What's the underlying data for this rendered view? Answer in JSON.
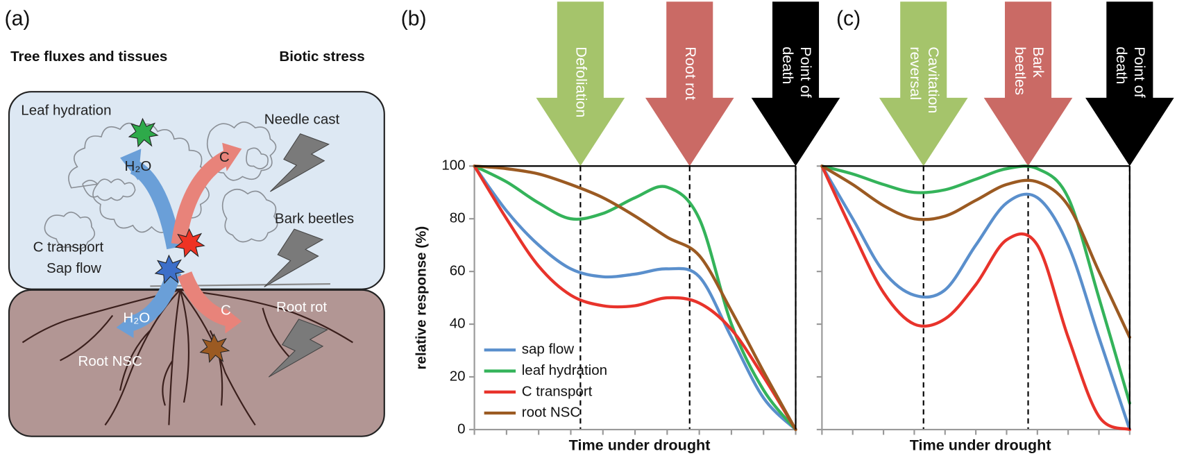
{
  "diagram": {
    "panel_label": "(a)",
    "heading_left": "Tree fluxes and tissues",
    "heading_right": "Biotic stress",
    "labels": [
      "Leaf hydration",
      "H₂O",
      "C",
      "Needle cast",
      "Bark beetles",
      "C transport",
      "Sap flow",
      "H₂O",
      "C",
      "Root rot",
      "Root NSC"
    ]
  },
  "chart_data": [
    {
      "type": "line",
      "panel_label": "(b)",
      "x_label": "Time under drought",
      "y_label": "relative response (%)",
      "x": [
        0,
        10,
        20,
        30,
        40,
        50,
        60,
        70,
        80,
        90,
        100
      ],
      "xlim": [
        0,
        100
      ],
      "xticks": [
        0,
        10,
        20,
        30,
        40,
        50,
        60,
        70,
        80,
        90,
        100
      ],
      "xtick_labels": false,
      "ylim": [
        0,
        100
      ],
      "yticks": [
        0,
        20,
        40,
        60,
        80,
        100
      ],
      "ytick_labels": true,
      "legend": "lower left",
      "series": [
        {
          "name": "sap flow",
          "color": "#5a8fcc",
          "values": [
            100,
            83,
            70,
            61,
            58,
            59,
            61,
            58,
            35,
            12,
            0
          ]
        },
        {
          "name": "leaf hydration",
          "color": "#34b35a",
          "values": [
            100,
            94,
            86,
            80,
            82,
            88,
            92,
            80,
            40,
            15,
            0
          ]
        },
        {
          "name": "C transport",
          "color": "#e8332b",
          "values": [
            100,
            80,
            62,
            51,
            47,
            47,
            50,
            48,
            38,
            20,
            0
          ]
        },
        {
          "name": "root NSC",
          "color": "#9b5a22",
          "values": [
            100,
            99,
            97,
            93,
            88,
            81,
            73,
            66,
            45,
            22,
            0
          ]
        }
      ],
      "events": [
        {
          "label": [
            "Defoliation"
          ],
          "x": 33,
          "color": "#9dbf5e"
        },
        {
          "label": [
            "Root rot"
          ],
          "x": 67,
          "color": "#c65d58"
        },
        {
          "label": [
            "Point of",
            "death"
          ],
          "x": 100,
          "color": "#000000"
        }
      ]
    },
    {
      "type": "line",
      "panel_label": "(c)",
      "x_label": "Time under drought",
      "x": [
        0,
        10,
        20,
        30,
        40,
        50,
        60,
        70,
        80,
        90,
        100
      ],
      "xlim": [
        0,
        100
      ],
      "xticks": [
        0,
        10,
        20,
        30,
        40,
        50,
        60,
        70,
        80,
        90,
        100
      ],
      "xtick_labels": false,
      "ylim": [
        0,
        100
      ],
      "yticks": [
        0,
        20,
        40,
        60,
        80,
        100
      ],
      "ytick_labels": false,
      "series": [
        {
          "name": "sap flow",
          "color": "#5a8fcc",
          "values": [
            100,
            80,
            60,
            51,
            53,
            70,
            86,
            88,
            70,
            35,
            0
          ]
        },
        {
          "name": "leaf hydration",
          "color": "#34b35a",
          "values": [
            100,
            97,
            93,
            90,
            91,
            95,
            99,
            99,
            88,
            50,
            10
          ]
        },
        {
          "name": "C transport",
          "color": "#e8332b",
          "values": [
            100,
            75,
            52,
            40,
            42,
            55,
            72,
            70,
            35,
            5,
            0
          ]
        },
        {
          "name": "root NSC",
          "color": "#9b5a22",
          "values": [
            100,
            93,
            85,
            80,
            81,
            87,
            93,
            94,
            85,
            60,
            35
          ]
        }
      ],
      "events": [
        {
          "label": [
            "Cavitation",
            "reversal"
          ],
          "x": 33,
          "color": "#9dbf5e"
        },
        {
          "label": [
            "Bark",
            "beetles"
          ],
          "x": 67,
          "color": "#c65d58"
        },
        {
          "label": [
            "Point of",
            "death"
          ],
          "x": 100,
          "color": "#000000"
        }
      ]
    }
  ]
}
